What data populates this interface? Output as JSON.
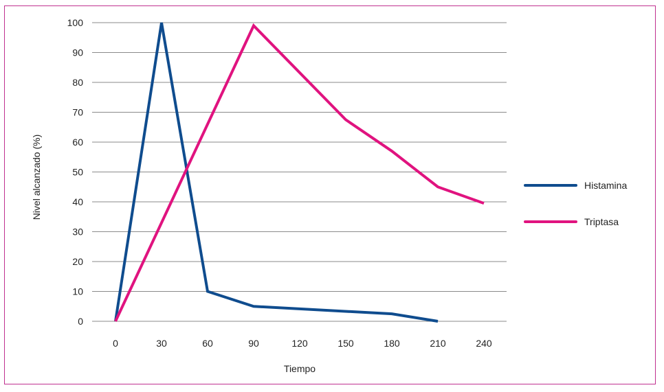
{
  "chart_data": {
    "type": "line",
    "title": "",
    "xlabel": "Tiempo",
    "ylabel": "Nivel alcanzado (%)",
    "categories": [
      0,
      30,
      60,
      90,
      120,
      150,
      180,
      210,
      240
    ],
    "ylim": [
      0,
      100
    ],
    "yticks": [
      0,
      10,
      20,
      30,
      40,
      50,
      60,
      70,
      80,
      90,
      100
    ],
    "grid": "horizontal",
    "legend_position": "right",
    "series": [
      {
        "name": "Histamina",
        "color": "#0f4c8e",
        "points": [
          [
            0,
            0
          ],
          [
            30,
            100
          ],
          [
            60,
            10
          ],
          [
            90,
            5
          ],
          [
            180,
            2.5
          ],
          [
            210,
            0
          ]
        ]
      },
      {
        "name": "Triptasa",
        "color": "#e0137f",
        "points": [
          [
            0,
            0
          ],
          [
            90,
            99
          ],
          [
            150,
            67.5
          ],
          [
            180,
            57
          ],
          [
            210,
            45
          ],
          [
            240,
            39.5
          ]
        ]
      }
    ]
  }
}
